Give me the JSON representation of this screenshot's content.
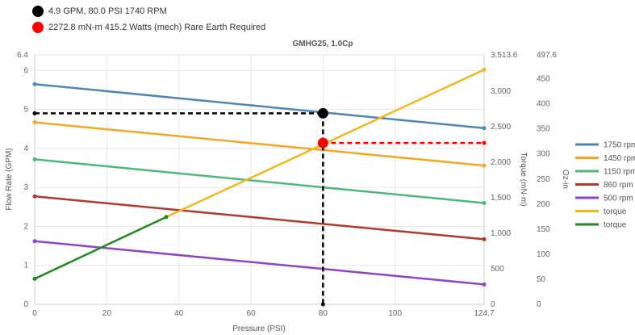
{
  "info": [
    {
      "text": "4.9 GPM, 80.0 PSI 1740 RPM",
      "color": "#000000"
    },
    {
      "text": "2272.8 mN-m 415.2 Watts (mech) Rare Earth Required",
      "color": "#ff0000"
    }
  ],
  "chart_data": {
    "type": "line",
    "title": "GMHG25, 1.0Cp",
    "xlabel": "Pressure (PSI)",
    "ylabel": "Flow Rate (GPM)",
    "y2label": "Torque (mN-m)",
    "y3label": "Oz-in",
    "xlim": [
      0,
      124.7
    ],
    "ylim": [
      0,
      6.4
    ],
    "y2lim": [
      0,
      3513.6
    ],
    "y3lim": [
      0,
      497.6
    ],
    "x_ticks": [
      "0",
      "20",
      "40",
      "60",
      "80",
      "100",
      "124.7"
    ],
    "x_tick_values": [
      0,
      20,
      40,
      60,
      80,
      100,
      124.7
    ],
    "y_ticks": [
      "0",
      "1",
      "2",
      "3",
      "4",
      "5",
      "6",
      "6.4"
    ],
    "y_tick_values": [
      0,
      1,
      2,
      3,
      4,
      5,
      6,
      6.4
    ],
    "y2_ticks": [
      "0",
      "500",
      "1,000",
      "1,500",
      "2,000",
      "2,500",
      "3,000",
      "3,513.6"
    ],
    "y2_tick_values": [
      0,
      500,
      1000,
      1500,
      2000,
      2500,
      3000,
      3513.6
    ],
    "y3_ticks": [
      "0",
      "50",
      "100",
      "150",
      "200",
      "250",
      "300",
      "350",
      "400",
      "450",
      "497.6"
    ],
    "y3_tick_values": [
      0,
      50,
      100,
      150,
      200,
      250,
      300,
      350,
      400,
      450,
      497.6
    ],
    "grid": true,
    "legend_position": "right",
    "series": [
      {
        "name": "1750 rpm",
        "color": "#4f86b4",
        "axis": "flow",
        "x": [
          0,
          124.7
        ],
        "y": [
          5.65,
          4.52
        ]
      },
      {
        "name": "1450 rpm",
        "color": "#f5a623",
        "axis": "flow",
        "x": [
          0,
          124.7
        ],
        "y": [
          4.67,
          3.56
        ]
      },
      {
        "name": "1150 rpm",
        "color": "#4cb87a",
        "axis": "flow",
        "x": [
          0,
          124.7
        ],
        "y": [
          3.72,
          2.6
        ]
      },
      {
        "name": "860 rpm",
        "color": "#b03a2e",
        "axis": "flow",
        "x": [
          0,
          124.7
        ],
        "y": [
          2.77,
          1.67
        ]
      },
      {
        "name": "500 rpm",
        "color": "#8e44c4",
        "axis": "flow",
        "x": [
          0,
          124.7
        ],
        "y": [
          1.62,
          0.51
        ]
      },
      {
        "name": "torque",
        "color": "#f0b81c",
        "axis": "torque",
        "x": [
          36.5,
          124.7
        ],
        "y": [
          1230,
          3305
        ]
      },
      {
        "name": "torque",
        "color": "#1e8a1e",
        "axis": "torque",
        "x": [
          0,
          36.5
        ],
        "y": [
          360,
          1230
        ]
      }
    ],
    "operating_point": {
      "flow": {
        "x": 80,
        "y": 4.9,
        "color": "#000000"
      },
      "torque": {
        "x": 80,
        "y": 2272.8,
        "color": "#ff0000"
      }
    }
  }
}
